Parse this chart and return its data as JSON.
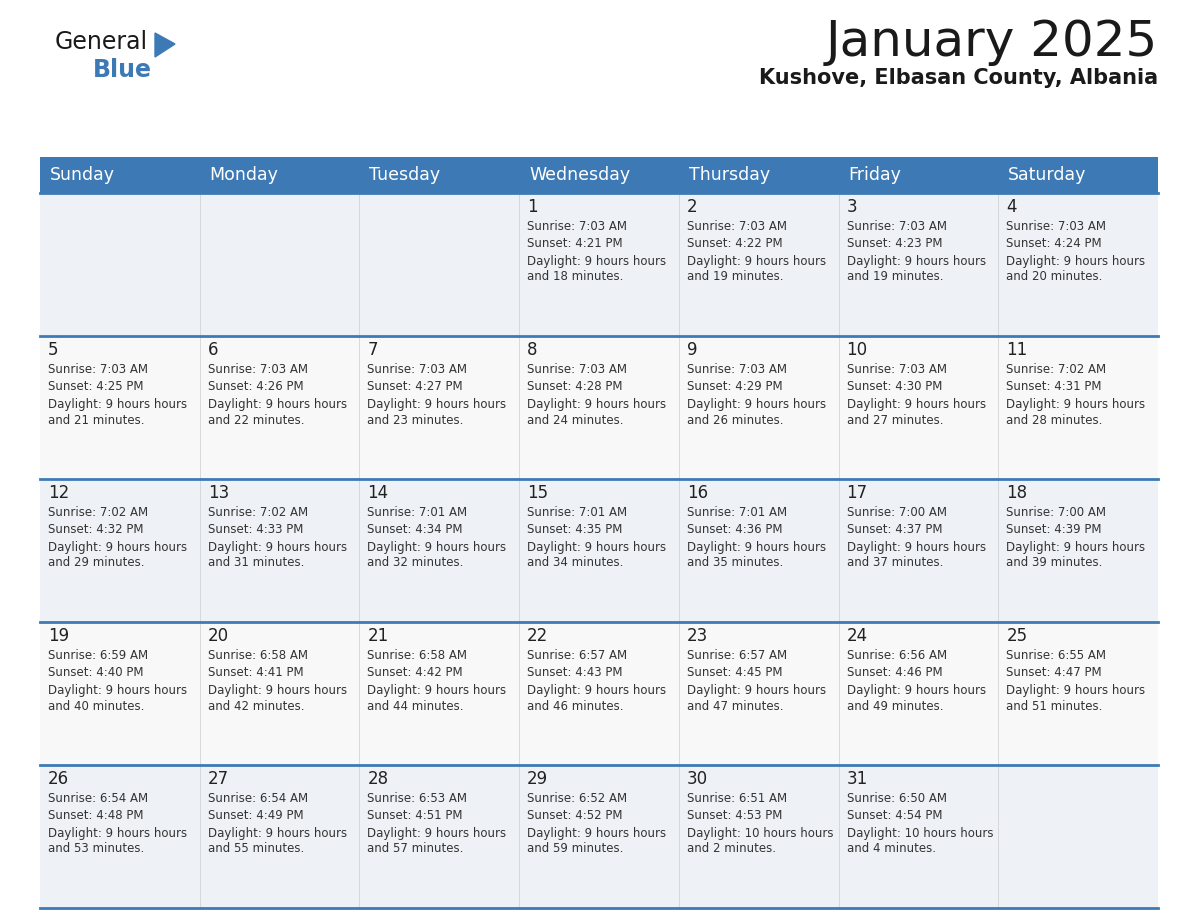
{
  "title": "January 2025",
  "subtitle": "Kushove, Elbasan County, Albania",
  "header_color": "#3d7ab5",
  "header_text_color": "#ffffff",
  "cell_bg_even": "#eef2f7",
  "cell_bg_odd": "#f8f8f8",
  "day_number_color": "#222222",
  "text_color": "#333333",
  "line_color": "#3d7ab5",
  "days_of_week": [
    "Sunday",
    "Monday",
    "Tuesday",
    "Wednesday",
    "Thursday",
    "Friday",
    "Saturday"
  ],
  "weeks": [
    [
      {
        "day": "",
        "sunrise": "",
        "sunset": "",
        "daylight": ""
      },
      {
        "day": "",
        "sunrise": "",
        "sunset": "",
        "daylight": ""
      },
      {
        "day": "",
        "sunrise": "",
        "sunset": "",
        "daylight": ""
      },
      {
        "day": "1",
        "sunrise": "7:03 AM",
        "sunset": "4:21 PM",
        "daylight": "9 hours and 18 minutes."
      },
      {
        "day": "2",
        "sunrise": "7:03 AM",
        "sunset": "4:22 PM",
        "daylight": "9 hours and 19 minutes."
      },
      {
        "day": "3",
        "sunrise": "7:03 AM",
        "sunset": "4:23 PM",
        "daylight": "9 hours and 19 minutes."
      },
      {
        "day": "4",
        "sunrise": "7:03 AM",
        "sunset": "4:24 PM",
        "daylight": "9 hours and 20 minutes."
      }
    ],
    [
      {
        "day": "5",
        "sunrise": "7:03 AM",
        "sunset": "4:25 PM",
        "daylight": "9 hours and 21 minutes."
      },
      {
        "day": "6",
        "sunrise": "7:03 AM",
        "sunset": "4:26 PM",
        "daylight": "9 hours and 22 minutes."
      },
      {
        "day": "7",
        "sunrise": "7:03 AM",
        "sunset": "4:27 PM",
        "daylight": "9 hours and 23 minutes."
      },
      {
        "day": "8",
        "sunrise": "7:03 AM",
        "sunset": "4:28 PM",
        "daylight": "9 hours and 24 minutes."
      },
      {
        "day": "9",
        "sunrise": "7:03 AM",
        "sunset": "4:29 PM",
        "daylight": "9 hours and 26 minutes."
      },
      {
        "day": "10",
        "sunrise": "7:03 AM",
        "sunset": "4:30 PM",
        "daylight": "9 hours and 27 minutes."
      },
      {
        "day": "11",
        "sunrise": "7:02 AM",
        "sunset": "4:31 PM",
        "daylight": "9 hours and 28 minutes."
      }
    ],
    [
      {
        "day": "12",
        "sunrise": "7:02 AM",
        "sunset": "4:32 PM",
        "daylight": "9 hours and 29 minutes."
      },
      {
        "day": "13",
        "sunrise": "7:02 AM",
        "sunset": "4:33 PM",
        "daylight": "9 hours and 31 minutes."
      },
      {
        "day": "14",
        "sunrise": "7:01 AM",
        "sunset": "4:34 PM",
        "daylight": "9 hours and 32 minutes."
      },
      {
        "day": "15",
        "sunrise": "7:01 AM",
        "sunset": "4:35 PM",
        "daylight": "9 hours and 34 minutes."
      },
      {
        "day": "16",
        "sunrise": "7:01 AM",
        "sunset": "4:36 PM",
        "daylight": "9 hours and 35 minutes."
      },
      {
        "day": "17",
        "sunrise": "7:00 AM",
        "sunset": "4:37 PM",
        "daylight": "9 hours and 37 minutes."
      },
      {
        "day": "18",
        "sunrise": "7:00 AM",
        "sunset": "4:39 PM",
        "daylight": "9 hours and 39 minutes."
      }
    ],
    [
      {
        "day": "19",
        "sunrise": "6:59 AM",
        "sunset": "4:40 PM",
        "daylight": "9 hours and 40 minutes."
      },
      {
        "day": "20",
        "sunrise": "6:58 AM",
        "sunset": "4:41 PM",
        "daylight": "9 hours and 42 minutes."
      },
      {
        "day": "21",
        "sunrise": "6:58 AM",
        "sunset": "4:42 PM",
        "daylight": "9 hours and 44 minutes."
      },
      {
        "day": "22",
        "sunrise": "6:57 AM",
        "sunset": "4:43 PM",
        "daylight": "9 hours and 46 minutes."
      },
      {
        "day": "23",
        "sunrise": "6:57 AM",
        "sunset": "4:45 PM",
        "daylight": "9 hours and 47 minutes."
      },
      {
        "day": "24",
        "sunrise": "6:56 AM",
        "sunset": "4:46 PM",
        "daylight": "9 hours and 49 minutes."
      },
      {
        "day": "25",
        "sunrise": "6:55 AM",
        "sunset": "4:47 PM",
        "daylight": "9 hours and 51 minutes."
      }
    ],
    [
      {
        "day": "26",
        "sunrise": "6:54 AM",
        "sunset": "4:48 PM",
        "daylight": "9 hours and 53 minutes."
      },
      {
        "day": "27",
        "sunrise": "6:54 AM",
        "sunset": "4:49 PM",
        "daylight": "9 hours and 55 minutes."
      },
      {
        "day": "28",
        "sunrise": "6:53 AM",
        "sunset": "4:51 PM",
        "daylight": "9 hours and 57 minutes."
      },
      {
        "day": "29",
        "sunrise": "6:52 AM",
        "sunset": "4:52 PM",
        "daylight": "9 hours and 59 minutes."
      },
      {
        "day": "30",
        "sunrise": "6:51 AM",
        "sunset": "4:53 PM",
        "daylight": "10 hours and 2 minutes."
      },
      {
        "day": "31",
        "sunrise": "6:50 AM",
        "sunset": "4:54 PM",
        "daylight": "10 hours and 4 minutes."
      },
      {
        "day": "",
        "sunrise": "",
        "sunset": "",
        "daylight": ""
      }
    ]
  ],
  "logo_text_general": "General",
  "logo_text_blue": "Blue",
  "logo_color_general": "#1a1a1a",
  "logo_color_blue": "#3d7ab5",
  "logo_triangle_color": "#3d7ab5"
}
